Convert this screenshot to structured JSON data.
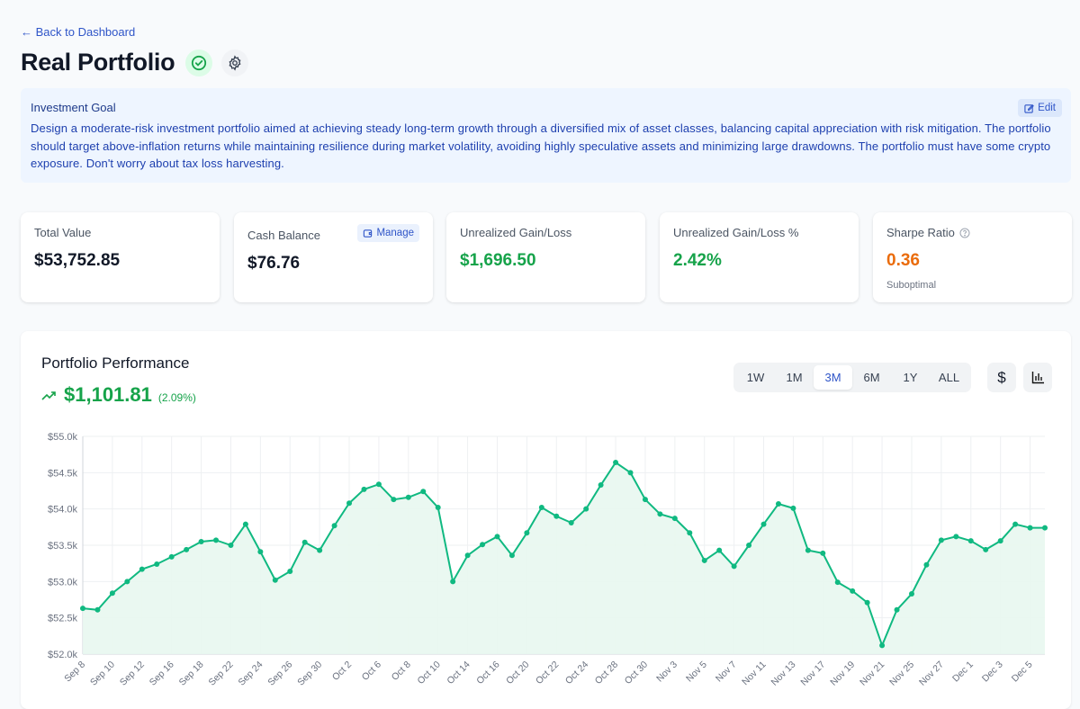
{
  "nav": {
    "back_label": "← Back to Dashboard"
  },
  "header": {
    "title": "Real Portfolio",
    "status_icon": "check-circle-icon",
    "settings_icon": "gear-icon"
  },
  "goal": {
    "heading": "Investment Goal",
    "edit_label": "Edit",
    "text": "Design a moderate-risk investment portfolio aimed at achieving steady long-term growth through a diversified mix of asset classes, balancing capital appreciation with risk mitigation. The portfolio should target above-inflation returns while maintaining resilience during market volatility, avoiding highly speculative assets and minimizing large drawdowns. The portfolio must have some crypto exposure. Don't worry about tax loss harvesting."
  },
  "stats": [
    {
      "label": "Total Value",
      "value": "$53,752.85"
    },
    {
      "label": "Cash Balance",
      "value": "$76.76",
      "action": "Manage"
    },
    {
      "label": "Unrealized Gain/Loss",
      "value": "$1,696.50"
    },
    {
      "label": "Unrealized Gain/Loss %",
      "value": "2.42%"
    },
    {
      "label": "Sharpe Ratio",
      "value": "0.36",
      "note": "Suboptimal"
    }
  ],
  "colors": {
    "positive": "#16a34a",
    "warning": "#ea6c0c",
    "accent": "#2f55c8",
    "line": "#10b981",
    "fill": "#e8f7ef"
  },
  "performance": {
    "title": "Portfolio Performance",
    "change": "$1,101.81",
    "change_pct": "(2.09%)",
    "ranges": [
      "1W",
      "1M",
      "3M",
      "6M",
      "1Y",
      "ALL"
    ],
    "active_range": "3M",
    "toggle_icons": [
      "dollar-icon",
      "bar-chart-icon"
    ]
  },
  "chart_data": {
    "type": "area",
    "ylim": [
      52000,
      55000
    ],
    "yticks": [
      "$52.0k",
      "$52.5k",
      "$53.0k",
      "$53.5k",
      "$54.0k",
      "$54.5k",
      "$55.0k"
    ],
    "grid": true,
    "xtick_labels": [
      "Sep 8",
      "Sep 10",
      "Sep 12",
      "Sep 16",
      "Sep 18",
      "Sep 22",
      "Sep 24",
      "Sep 26",
      "Sep 30",
      "Oct 2",
      "Oct 6",
      "Oct 8",
      "Oct 10",
      "Oct 14",
      "Oct 16",
      "Oct 20",
      "Oct 22",
      "Oct 24",
      "Oct 28",
      "Oct 30",
      "Nov 3",
      "Nov 5",
      "Nov 7",
      "Nov 11",
      "Nov 13",
      "Nov 17",
      "Nov 19",
      "Nov 21",
      "Nov 25",
      "Nov 27",
      "Dec 1",
      "Dec 3",
      "Dec 5"
    ],
    "values": [
      52630,
      52610,
      52840,
      53000,
      53170,
      53240,
      53340,
      53440,
      53550,
      53570,
      53500,
      53790,
      53410,
      53020,
      53140,
      53540,
      53430,
      53770,
      54080,
      54270,
      54340,
      54130,
      54160,
      54240,
      54020,
      53000,
      53360,
      53510,
      53620,
      53360,
      53670,
      54020,
      53900,
      53810,
      54000,
      54330,
      54640,
      54500,
      54130,
      53930,
      53870,
      53670,
      53290,
      53430,
      53210,
      53500,
      53790,
      54070,
      54010,
      53430,
      53390,
      52990,
      52870,
      52710,
      52120,
      52610,
      52830,
      53230,
      53570,
      53620,
      53560,
      53440,
      53560,
      53790,
      53740,
      53740
    ]
  }
}
